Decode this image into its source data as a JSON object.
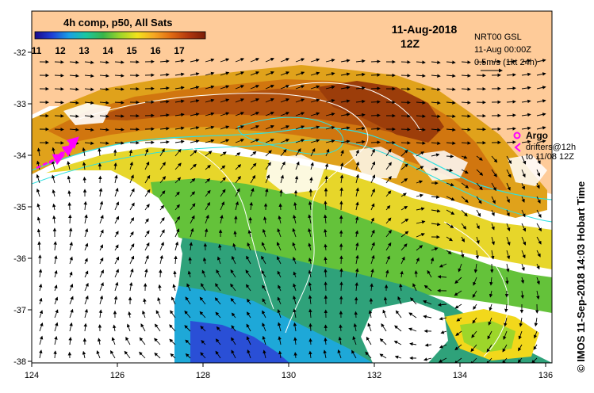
{
  "product": "4h comp, p50, All Sats",
  "date": "11-Aug-2018",
  "hour": "12Z",
  "info_lines": [
    "NRT00 GSL",
    "11-Aug 00:00Z",
    "0.5m/s (1kt 24h)"
  ],
  "argo_label": "Argo",
  "drifter_lines": [
    "drifters@12h",
    "to 11/08 12Z"
  ],
  "credit": "© IMOS 11-Sep-2018 14:03 Hobart Time",
  "colorbar": {
    "ticks": [
      "11",
      "12",
      "13",
      "14",
      "15",
      "16",
      "17"
    ],
    "colors": [
      "#1a0a8c",
      "#1f3fd6",
      "#1aa0e6",
      "#19c7a0",
      "#39b54a",
      "#9dd62a",
      "#f2e21b",
      "#f5a623",
      "#e06a12",
      "#b2370d",
      "#7a1e08"
    ]
  },
  "axes": {
    "lon_ticks": [
      "124",
      "126",
      "128",
      "130",
      "132",
      "134",
      "136"
    ],
    "lat_ticks": [
      "-32",
      "-33",
      "-34",
      "-35",
      "-36",
      "-37",
      "-38"
    ]
  },
  "colors": {
    "land": "#fecb99",
    "arrow": "#000000",
    "argo": "#ff00ff",
    "isobath": "#2fe0e0",
    "contour": "#ffffff"
  }
}
